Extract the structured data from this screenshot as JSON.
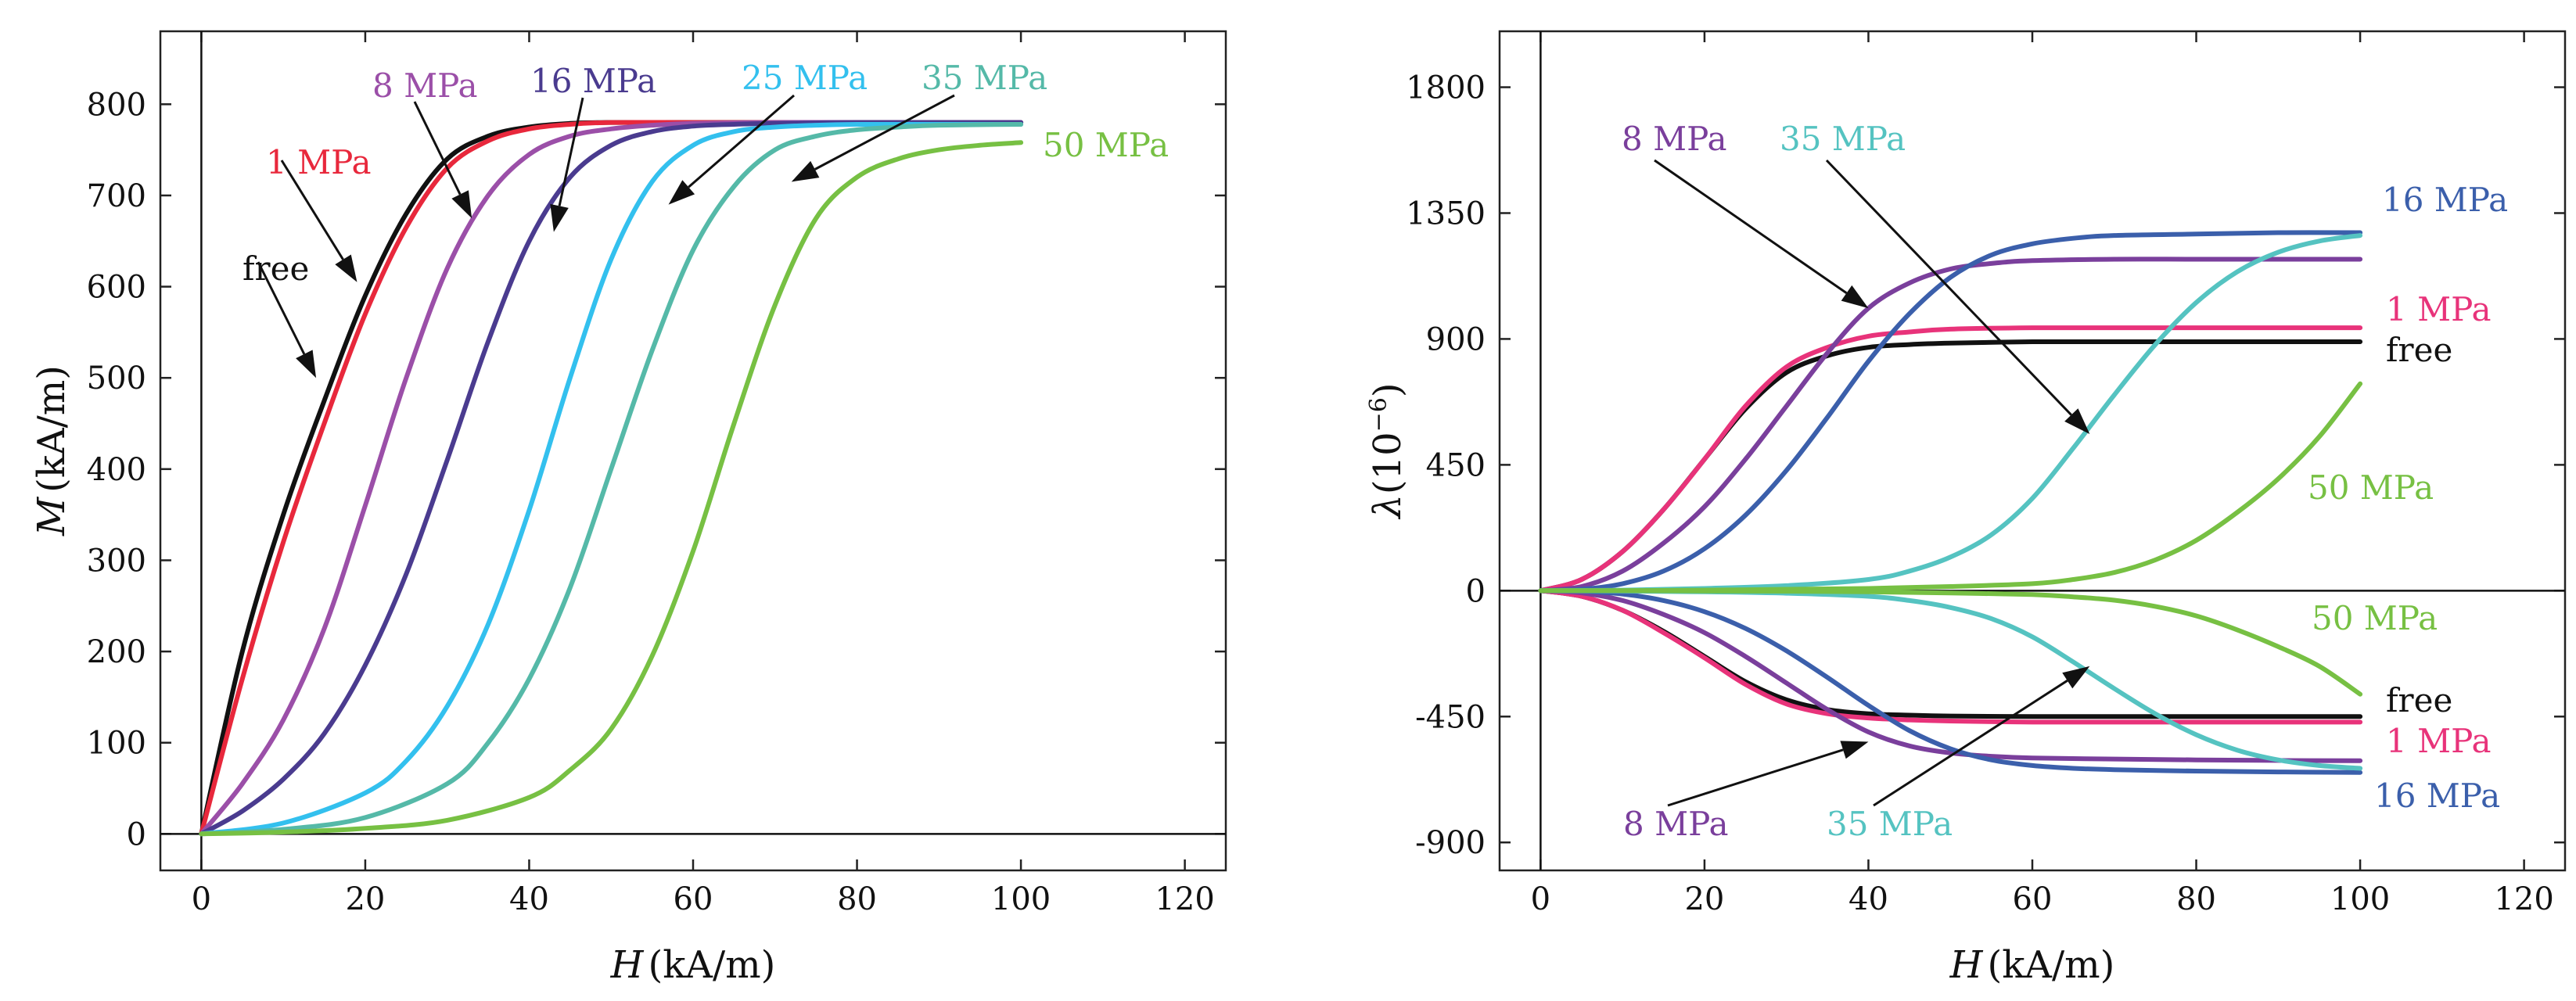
{
  "chart_data": [
    {
      "type": "line",
      "xlabel_var": "H",
      "xlabel_unit": "(kA/m)",
      "ylabel_var": "M",
      "ylabel_unit": "(kA/m)",
      "xlim": [
        -5,
        125
      ],
      "ylim": [
        -40,
        880
      ],
      "xticks": [
        0,
        20,
        40,
        60,
        80,
        100,
        120
      ],
      "yticks": [
        0,
        100,
        200,
        300,
        400,
        500,
        600,
        700,
        800
      ],
      "colors": {
        "free": "#111111",
        "1 MPa": "#e8283c",
        "8 MPa": "#9b4fa8",
        "16 MPa": "#4a3b8f",
        "25 MPa": "#33c0ee",
        "35 MPa": "#55b9a8",
        "50 MPa": "#77c043"
      },
      "series": [
        {
          "label": "free",
          "x": [
            0,
            5,
            10,
            15,
            20,
            25,
            30,
            35,
            40,
            45,
            50,
            60,
            70,
            80,
            90,
            100
          ],
          "y": [
            0,
            200,
            350,
            475,
            590,
            680,
            740,
            765,
            775,
            779,
            780,
            780,
            780,
            780,
            780,
            780
          ]
        },
        {
          "label": "1 MPa",
          "x": [
            0,
            5,
            10,
            15,
            20,
            25,
            30,
            35,
            40,
            45,
            50,
            60,
            70,
            80,
            90,
            100
          ],
          "y": [
            0,
            170,
            320,
            450,
            570,
            665,
            730,
            760,
            773,
            778,
            780,
            780,
            780,
            780,
            780,
            780
          ]
        },
        {
          "label": "8 MPa",
          "x": [
            0,
            5,
            10,
            15,
            20,
            25,
            30,
            35,
            40,
            45,
            50,
            55,
            60,
            70,
            80,
            90,
            100
          ],
          "y": [
            0,
            55,
            125,
            225,
            360,
            500,
            620,
            700,
            745,
            765,
            773,
            777,
            779,
            780,
            780,
            780,
            780
          ]
        },
        {
          "label": "16 MPa",
          "x": [
            0,
            5,
            10,
            15,
            20,
            25,
            30,
            35,
            40,
            45,
            50,
            55,
            60,
            65,
            70,
            80,
            90,
            100
          ],
          "y": [
            0,
            25,
            60,
            110,
            185,
            285,
            410,
            540,
            650,
            720,
            755,
            770,
            776,
            778,
            779,
            780,
            780,
            780
          ]
        },
        {
          "label": "25 MPa",
          "x": [
            0,
            10,
            20,
            25,
            30,
            35,
            40,
            45,
            50,
            55,
            60,
            65,
            70,
            75,
            80,
            90,
            100
          ],
          "y": [
            0,
            12,
            45,
            80,
            140,
            230,
            355,
            500,
            630,
            715,
            755,
            770,
            775,
            777,
            778,
            778,
            778
          ]
        },
        {
          "label": "35 MPa",
          "x": [
            0,
            10,
            20,
            30,
            35,
            40,
            45,
            50,
            55,
            60,
            65,
            70,
            75,
            80,
            85,
            90,
            100
          ],
          "y": [
            0,
            5,
            18,
            55,
            100,
            170,
            270,
            400,
            530,
            640,
            710,
            750,
            765,
            772,
            775,
            777,
            778
          ]
        },
        {
          "label": "50 MPa",
          "x": [
            0,
            10,
            20,
            30,
            40,
            45,
            50,
            55,
            60,
            65,
            70,
            75,
            80,
            85,
            90,
            95,
            100
          ],
          "y": [
            0,
            2,
            6,
            15,
            40,
            70,
            115,
            195,
            310,
            450,
            580,
            675,
            720,
            740,
            750,
            755,
            758
          ]
        }
      ],
      "annotations": [
        {
          "text": "free",
          "color": "#111111",
          "arrow_to": [
            14,
            500
          ]
        },
        {
          "text": "1 MPa",
          "color": "#e8283c",
          "arrow_to": [
            19,
            605
          ]
        },
        {
          "text": "8 MPa",
          "color": "#9b4fa8",
          "arrow_to": [
            33,
            675
          ]
        },
        {
          "text": "16 MPa",
          "color": "#4a3b8f",
          "arrow_to": [
            43,
            660
          ]
        },
        {
          "text": "25 MPa",
          "color": "#33c0ee",
          "arrow_to": [
            57,
            690
          ]
        },
        {
          "text": "35 MPa",
          "color": "#55b9a8",
          "arrow_to": [
            72,
            715
          ]
        },
        {
          "text": "50 MPa",
          "color": "#77c043",
          "arrow_to": null
        }
      ]
    },
    {
      "type": "line",
      "xlabel_var": "H",
      "xlabel_unit": "(kA/m)",
      "ylabel_var": "λ",
      "ylabel_unit": "(10",
      "ylabel_exp": "−6",
      "ylabel_close": ")",
      "xlim": [
        -5,
        125
      ],
      "ylim": [
        -1000,
        2000
      ],
      "xticks": [
        0,
        20,
        40,
        60,
        80,
        100,
        120
      ],
      "yticks": [
        -900,
        -450,
        0,
        450,
        900,
        1350,
        1800
      ],
      "colors": {
        "free": "#111111",
        "1 MPa": "#e8337a",
        "8 MPa": "#7a3f9c",
        "16 MPa": "#3b5fab",
        "35 MPa": "#55c3c1",
        "50 MPa": "#77c043"
      },
      "series": [
        {
          "label": "free",
          "branch": "parallel",
          "x": [
            0,
            5,
            10,
            15,
            20,
            25,
            30,
            35,
            40,
            45,
            50,
            60,
            70,
            80,
            90,
            100
          ],
          "y": [
            0,
            40,
            140,
            290,
            470,
            650,
            780,
            840,
            870,
            880,
            885,
            890,
            890,
            890,
            890,
            890
          ]
        },
        {
          "label": "1 MPa",
          "branch": "parallel",
          "x": [
            0,
            5,
            10,
            15,
            20,
            25,
            30,
            35,
            40,
            45,
            50,
            60,
            70,
            80,
            90,
            100
          ],
          "y": [
            0,
            40,
            140,
            290,
            470,
            660,
            800,
            870,
            910,
            925,
            935,
            940,
            940,
            940,
            940,
            940
          ]
        },
        {
          "label": "8 MPa",
          "branch": "parallel",
          "x": [
            0,
            5,
            10,
            15,
            20,
            25,
            30,
            35,
            40,
            45,
            50,
            55,
            60,
            70,
            80,
            90,
            100
          ],
          "y": [
            0,
            15,
            70,
            170,
            300,
            470,
            660,
            850,
            1010,
            1100,
            1150,
            1170,
            1180,
            1185,
            1185,
            1185,
            1185
          ]
        },
        {
          "label": "16 MPa",
          "branch": "parallel",
          "x": [
            0,
            5,
            10,
            15,
            20,
            25,
            30,
            35,
            40,
            45,
            50,
            55,
            60,
            65,
            70,
            80,
            90,
            100
          ],
          "y": [
            0,
            5,
            25,
            70,
            150,
            270,
            430,
            620,
            820,
            990,
            1120,
            1200,
            1240,
            1260,
            1270,
            1275,
            1280,
            1280
          ]
        },
        {
          "label": "35 MPa",
          "branch": "parallel",
          "x": [
            0,
            10,
            20,
            30,
            40,
            45,
            50,
            55,
            60,
            65,
            70,
            75,
            80,
            85,
            90,
            95,
            100
          ],
          "y": [
            0,
            2,
            8,
            18,
            40,
            70,
            120,
            200,
            330,
            510,
            700,
            880,
            1030,
            1140,
            1210,
            1250,
            1270
          ]
        },
        {
          "label": "50 MPa",
          "branch": "parallel",
          "x": [
            0,
            10,
            20,
            30,
            40,
            50,
            60,
            65,
            70,
            75,
            80,
            85,
            90,
            95,
            100
          ],
          "y": [
            0,
            0,
            2,
            5,
            8,
            15,
            25,
            40,
            65,
            110,
            180,
            280,
            400,
            550,
            740
          ]
        },
        {
          "label": "free",
          "branch": "perpendicular",
          "x": [
            0,
            5,
            10,
            15,
            20,
            25,
            30,
            35,
            40,
            45,
            50,
            60,
            70,
            80,
            90,
            100
          ],
          "y": [
            0,
            -20,
            -70,
            -145,
            -235,
            -325,
            -390,
            -425,
            -440,
            -445,
            -448,
            -450,
            -450,
            -450,
            -450,
            -450
          ]
        },
        {
          "label": "1 MPa",
          "branch": "perpendicular",
          "x": [
            0,
            5,
            10,
            15,
            20,
            25,
            30,
            35,
            40,
            45,
            50,
            60,
            70,
            80,
            90,
            100
          ],
          "y": [
            0,
            -20,
            -70,
            -150,
            -240,
            -335,
            -405,
            -440,
            -455,
            -462,
            -466,
            -470,
            -470,
            -470,
            -470,
            -470
          ]
        },
        {
          "label": "8 MPa",
          "branch": "perpendicular",
          "x": [
            0,
            5,
            10,
            15,
            20,
            25,
            30,
            35,
            40,
            45,
            50,
            55,
            60,
            70,
            80,
            90,
            100
          ],
          "y": [
            0,
            -8,
            -35,
            -85,
            -150,
            -235,
            -330,
            -425,
            -505,
            -555,
            -580,
            -592,
            -598,
            -602,
            -605,
            -607,
            -608
          ]
        },
        {
          "label": "16 MPa",
          "branch": "perpendicular",
          "x": [
            0,
            5,
            10,
            15,
            20,
            25,
            30,
            35,
            40,
            45,
            50,
            55,
            60,
            65,
            70,
            80,
            90,
            100
          ],
          "y": [
            0,
            -2,
            -12,
            -35,
            -75,
            -135,
            -215,
            -310,
            -410,
            -500,
            -565,
            -605,
            -625,
            -635,
            -640,
            -645,
            -648,
            -650
          ]
        },
        {
          "label": "35 MPa",
          "branch": "perpendicular",
          "x": [
            0,
            10,
            20,
            30,
            40,
            45,
            50,
            55,
            60,
            65,
            70,
            75,
            80,
            85,
            90,
            95,
            100
          ],
          "y": [
            0,
            -1,
            -4,
            -9,
            -20,
            -35,
            -60,
            -100,
            -165,
            -255,
            -350,
            -440,
            -515,
            -570,
            -605,
            -625,
            -635
          ]
        },
        {
          "label": "50 MPa",
          "branch": "perpendicular",
          "x": [
            0,
            10,
            20,
            30,
            40,
            50,
            60,
            65,
            70,
            75,
            80,
            85,
            90,
            95,
            100
          ],
          "y": [
            0,
            0,
            -1,
            -2,
            -4,
            -8,
            -14,
            -22,
            -34,
            -56,
            -90,
            -140,
            -200,
            -270,
            -370
          ]
        }
      ],
      "annotations": [
        {
          "text": "8 MPa",
          "color": "#7a3f9c",
          "arrow_to": [
            40,
            1010
          ]
        },
        {
          "text": "35 MPa",
          "color": "#55c3c1",
          "arrow_to": [
            67,
            560
          ]
        },
        {
          "text": "16 MPa",
          "color": "#3b5fab",
          "arrow_to": null
        },
        {
          "text": "1 MPa",
          "color": "#e8337a",
          "arrow_to": null
        },
        {
          "text": "free",
          "color": "#111111",
          "arrow_to": null
        },
        {
          "text": "50 MPa",
          "color": "#77c043",
          "arrow_to": null
        },
        {
          "text": "50 MPa",
          "color": "#77c043",
          "arrow_to": null
        },
        {
          "text": "free",
          "color": "#111111",
          "arrow_to": null
        },
        {
          "text": "1 MPa",
          "color": "#e8337a",
          "arrow_to": null
        },
        {
          "text": "16 MPa",
          "color": "#3b5fab",
          "arrow_to": null
        },
        {
          "text": "8 MPa",
          "color": "#7a3f9c",
          "arrow_to": [
            40,
            -540
          ]
        },
        {
          "text": "35 MPa",
          "color": "#55c3c1",
          "arrow_to": [
            67,
            -270
          ]
        }
      ]
    }
  ]
}
